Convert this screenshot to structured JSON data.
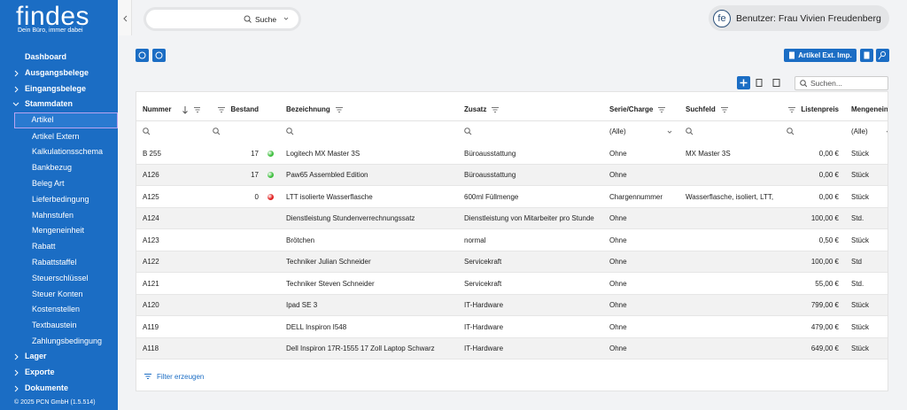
{
  "sidebar": {
    "logo": "findes",
    "tagline": "Dein Büro, immer dabei",
    "nav": [
      {
        "label": "Dashboard"
      },
      {
        "label": "Ausgangsbelege",
        "collapsed": true
      },
      {
        "label": "Eingangsbelege",
        "collapsed": true
      },
      {
        "label": "Stammdaten",
        "collapsed": false,
        "children": [
          {
            "label": "Artikel",
            "selected": true
          },
          {
            "label": "Artikel Extern"
          },
          {
            "label": "Kalkulationsschema"
          },
          {
            "label": "Bankbezug"
          },
          {
            "label": "Beleg Art"
          },
          {
            "label": "Lieferbedingung"
          },
          {
            "label": "Mahnstufen"
          },
          {
            "label": "Mengeneinheit"
          },
          {
            "label": "Rabatt"
          },
          {
            "label": "Rabattstaffel"
          },
          {
            "label": "Steuerschlüssel"
          },
          {
            "label": "Steuer Konten"
          },
          {
            "label": "Kostenstellen"
          },
          {
            "label": "Textbaustein"
          },
          {
            "label": "Zahlungsbedingung"
          }
        ]
      },
      {
        "label": "Lager",
        "collapsed": true
      },
      {
        "label": "Exporte",
        "collapsed": true
      },
      {
        "label": "Dokumente",
        "collapsed": true
      }
    ],
    "footer": "© 2025 PCN GmbH (1.5.514)"
  },
  "topbar": {
    "search_label": "Suche",
    "user_initials": "fe",
    "user_label": "Benutzer: Frau Vivien Freudenberg"
  },
  "toolbar": {
    "import_button": "Artikel Ext. Imp.",
    "search_placeholder": "Suchen..."
  },
  "table": {
    "columns": [
      {
        "label": "Nummer",
        "sort": "desc"
      },
      {
        "label": "Bestand",
        "align": "right"
      },
      {
        "label": "Bezeichnung"
      },
      {
        "label": "Zusatz"
      },
      {
        "label": "Serie/Charge"
      },
      {
        "label": "Suchfeld"
      },
      {
        "label": "Listenpreis",
        "align": "right"
      },
      {
        "label": "Mengeneinheit"
      }
    ],
    "filters": [
      null,
      null,
      null,
      null,
      "(Alle)",
      null,
      null,
      "(Alle)"
    ],
    "rows": [
      {
        "cells": [
          "B 255",
          17,
          "Logitech MX Master 3S",
          "Büroausstattung",
          "Ohne",
          "MX Master 3S",
          "0,00 €",
          "Stück"
        ],
        "status": "#3fbf3f"
      },
      {
        "cells": [
          "A126",
          17,
          "Paw65 Assembled Edition",
          "Büroausstattung",
          "Ohne",
          null,
          "0,00 €",
          "Stück"
        ],
        "status": "#3fbf3f"
      },
      {
        "cells": [
          "A125",
          0,
          "LTT isolierte Wasserflasche",
          "600ml Füllmenge",
          "Chargennummer",
          "Wasserflasche, isoliert, LTT,",
          "0,00 €",
          "Stück"
        ],
        "status": "#e02020"
      },
      {
        "cells": [
          "A124",
          null,
          "Dienstleistung Stundenverrechnungssatz",
          "Dienstleistung von Mitarbeiter pro Stunde",
          "Ohne",
          null,
          "100,00 €",
          "Std."
        ]
      },
      {
        "cells": [
          "A123",
          null,
          "Brötchen",
          "normal",
          "Ohne",
          null,
          "0,50 €",
          "Stück"
        ]
      },
      {
        "cells": [
          "A122",
          null,
          "Techniker Julian Schneider",
          "Servicekraft",
          "Ohne",
          null,
          "100,00 €",
          "Std"
        ]
      },
      {
        "cells": [
          "A121",
          null,
          "Techniker Steven Schneider",
          "Servicekraft",
          "Ohne",
          null,
          "55,00 €",
          "Std."
        ]
      },
      {
        "cells": [
          "A120",
          null,
          "Ipad SE 3",
          "IT-Hardware",
          "Ohne",
          null,
          "799,00 €",
          "Stück"
        ]
      },
      {
        "cells": [
          "A119",
          null,
          "DELL Inspiron I548",
          "IT-Hardware",
          "Ohne",
          null,
          "479,00 €",
          "Stück"
        ]
      },
      {
        "cells": [
          "A118",
          null,
          "Dell Inspiron 17R-1555 17 Zoll Laptop Schwarz",
          "IT-Hardware",
          "Ohne",
          null,
          "649,00 €",
          "Stück"
        ]
      }
    ],
    "footer_action": "Filter erzeugen"
  }
}
